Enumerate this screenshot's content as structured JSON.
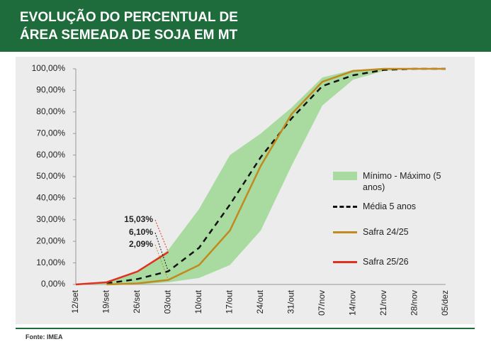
{
  "header": {
    "title": "EVOLUÇÃO DO PERCENTUAL DE ÁREA SEMEADA DE SOJA EM MT"
  },
  "chart_data": {
    "type": "line",
    "categories": [
      "12/set",
      "19/set",
      "26/set",
      "03/out",
      "10/out",
      "17/out",
      "24/out",
      "31/out",
      "07/nov",
      "14/nov",
      "21/nov",
      "28/nov",
      "05/dez"
    ],
    "ylim": [
      0,
      100
    ],
    "yticks": [
      {
        "value": 0,
        "label": "0,00%"
      },
      {
        "value": 10,
        "label": "10,00%"
      },
      {
        "value": 20,
        "label": "20,00%"
      },
      {
        "value": 30,
        "label": "30,00%"
      },
      {
        "value": 40,
        "label": "40,00%"
      },
      {
        "value": 50,
        "label": "50,00%"
      },
      {
        "value": 60,
        "label": "60,00%"
      },
      {
        "value": 70,
        "label": "70,00%"
      },
      {
        "value": 80,
        "label": "80,00%"
      },
      {
        "value": 90,
        "label": "90,00%"
      },
      {
        "value": 100,
        "label": "100,00%"
      }
    ],
    "band": {
      "name": "Mínimo - Máximo (5 anos)",
      "color": "#a9dba0",
      "low": [
        0,
        0,
        0,
        1,
        3,
        9,
        25,
        55,
        83,
        95,
        99,
        100,
        100
      ],
      "high": [
        0,
        1,
        6,
        16,
        35,
        60,
        70,
        82,
        96,
        99.5,
        100,
        100,
        100
      ]
    },
    "series": [
      {
        "name": "Média 5 anos",
        "color": "#111111",
        "dash": true,
        "values": [
          null,
          0.5,
          2.5,
          6.1,
          17,
          37,
          59,
          77,
          92,
          97,
          99.5,
          100,
          100
        ],
        "value_labels": [
          null,
          null,
          null,
          "6,10%",
          null,
          null,
          null,
          null,
          null,
          null,
          null,
          null,
          null
        ]
      },
      {
        "name": "Safra 24/25",
        "color": "#c08a1e",
        "dash": false,
        "values": [
          null,
          0,
          0.5,
          2.09,
          9,
          25,
          55,
          79,
          94,
          99,
          100,
          100,
          100
        ],
        "value_labels": [
          null,
          null,
          null,
          "2,09%",
          null,
          null,
          null,
          null,
          null,
          null,
          null,
          null,
          null
        ]
      },
      {
        "name": "Safra 25/26",
        "color": "#e2301f",
        "dash": false,
        "values": [
          0,
          1,
          6,
          15.03,
          null,
          null,
          null,
          null,
          null,
          null,
          null,
          null,
          null
        ],
        "value_labels": [
          null,
          null,
          null,
          "15,03%",
          null,
          null,
          null,
          null,
          null,
          null,
          null,
          null,
          null
        ]
      }
    ]
  },
  "footer": {
    "source": "Fonte: IMEA"
  }
}
